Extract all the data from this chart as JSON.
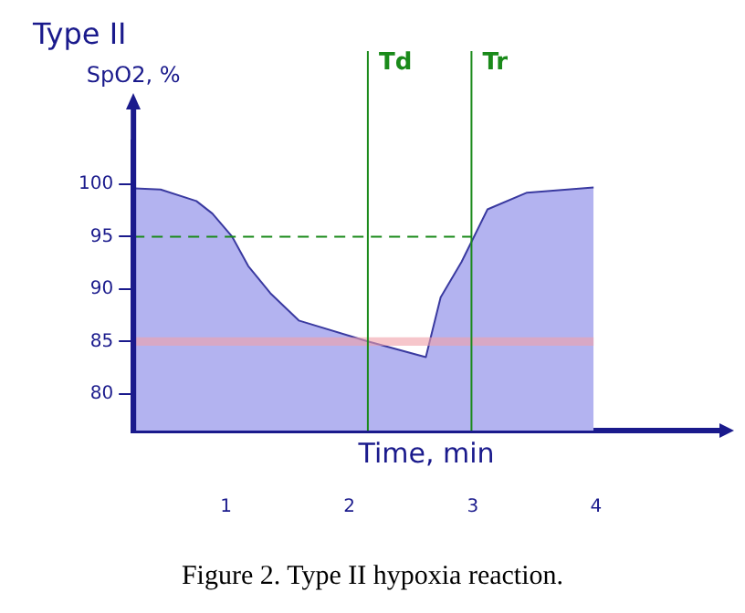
{
  "chart_data": {
    "type": "area",
    "title": "Type II",
    "xlabel": "Time, min",
    "ylabel": "SpO2, %",
    "x": [
      0.26,
      0.47,
      0.76,
      0.89,
      1.05,
      1.18,
      1.36,
      1.59,
      2.15,
      2.62,
      2.74,
      2.91,
      3.12,
      3.44,
      3.98
    ],
    "series": [
      {
        "color": "#b3b3f0",
        "values": [
          99.6,
          99.5,
          98.4,
          97.2,
          95,
          92.2,
          89.6,
          87,
          85,
          83.5,
          89.2,
          92.6,
          97.6,
          99.2,
          99.7
        ]
      }
    ],
    "xlim": [
      0.25,
      5
    ],
    "xticks": [
      1,
      2,
      3,
      4
    ],
    "ylim": [
      76.5,
      104
    ],
    "yticks": [
      80,
      85,
      90,
      95,
      100
    ],
    "ref_lines": [
      {
        "axis": "x",
        "value": 2.15,
        "label": "Td",
        "color": "#1a8a1a"
      },
      {
        "axis": "x",
        "value": 2.99,
        "label": "Tr",
        "color": "#1a8a1a"
      },
      {
        "axis": "y",
        "value": 95,
        "label": null,
        "color": "#1a8a1a",
        "line_style": "dashed"
      }
    ],
    "bands": [
      {
        "axis": "y",
        "from": 84.6,
        "to": 85.4,
        "label": null,
        "color": "#f0a0a8"
      }
    ],
    "annotations": [
      "Figure 2.  Type II hypoxia reaction."
    ],
    "grid": false,
    "legend": false,
    "marker": "none",
    "line_style": "solid"
  }
}
